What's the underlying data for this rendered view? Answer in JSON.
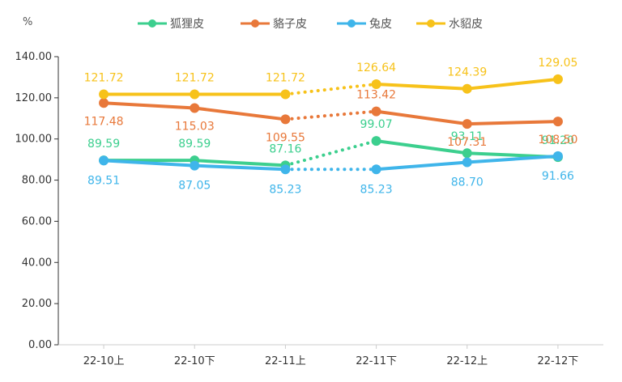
{
  "chart_data": {
    "type": "line",
    "unit_label": "%",
    "categories": [
      "22-10上",
      "22-10下",
      "22-11上",
      "22-11下",
      "22-12上",
      "22-12下"
    ],
    "ylim": [
      0,
      140
    ],
    "yticks": [
      "0.00",
      "20.00",
      "40.00",
      "60.00",
      "80.00",
      "100.00",
      "120.00",
      "140.00"
    ],
    "grid": false,
    "legend_position": "top-center",
    "dotted_segment_between": [
      "22-11上",
      "22-11下"
    ],
    "series": [
      {
        "name": "狐狸皮",
        "color": "#3ccf8e",
        "values": [
          89.59,
          89.59,
          87.16,
          99.07,
          93.11,
          91.2
        ],
        "labels": [
          "89.59",
          "89.59",
          "87.16",
          "99.07",
          "93.11",
          "91.20"
        ]
      },
      {
        "name": "貉子皮",
        "color": "#e8783a",
        "values": [
          117.48,
          115.03,
          109.55,
          113.42,
          107.31,
          108.5
        ],
        "labels": [
          "117.48",
          "115.03",
          "109.55",
          "113.42",
          "107.31",
          "108.50"
        ]
      },
      {
        "name": "兔皮",
        "color": "#3fb5ea",
        "values": [
          89.51,
          87.05,
          85.23,
          85.23,
          88.7,
          91.66
        ],
        "labels": [
          "89.51",
          "87.05",
          "85.23",
          "85.23",
          "88.70",
          "91.66"
        ]
      },
      {
        "name": "水貂皮",
        "color": "#f7c21a",
        "values": [
          121.72,
          121.72,
          121.72,
          126.64,
          124.39,
          129.05
        ],
        "labels": [
          "121.72",
          "121.72",
          "121.72",
          "126.64",
          "124.39",
          "129.05"
        ]
      }
    ]
  }
}
